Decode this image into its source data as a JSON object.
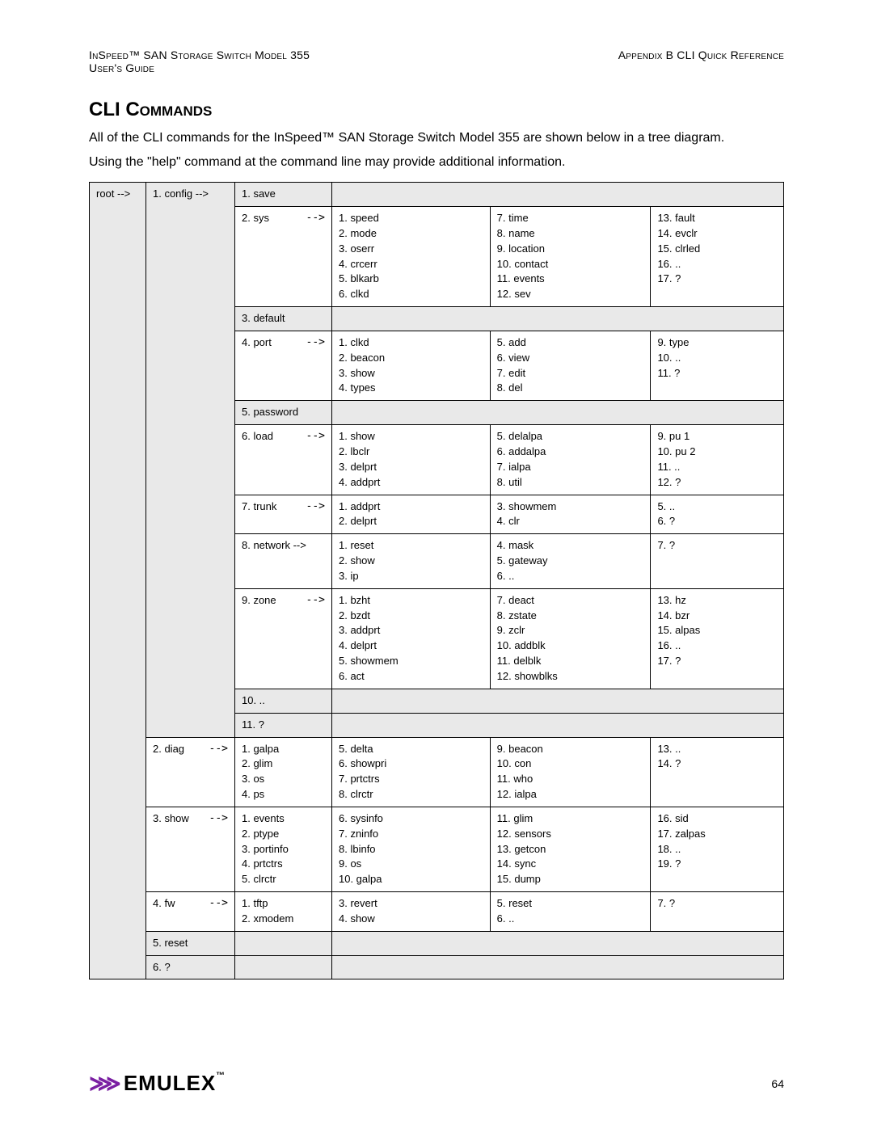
{
  "header": {
    "left_line1": "InSpeed™ SAN Storage Switch Model 355",
    "left_line2": "User's Guide",
    "right_line1": "Appendix B CLI Quick Reference"
  },
  "title": "CLI Commands",
  "intro1": "All of the CLI commands for the InSpeed™ SAN Storage Switch Model 355 are shown below in a tree diagram.",
  "intro2": "Using the \"help\" command at the command line may provide additional information.",
  "root": "root -->",
  "l2": {
    "config": "1. config -->",
    "diag": "2. diag",
    "show": "3. show",
    "fw": "4. fw",
    "reset": "5. reset",
    "q": "6. ?"
  },
  "arrow": "-->",
  "config": {
    "save": "1. save",
    "sys": "2. sys",
    "default": "3. default",
    "port": "4. port",
    "password": "5. password",
    "load": "6. load",
    "trunk": "7. trunk",
    "network": "8. network -->",
    "zone": "9. zone",
    "dots": "10. ..",
    "q": "11. ?"
  },
  "sys": {
    "c1": [
      "1. speed",
      "2. mode",
      "3. oserr",
      "4. crcerr",
      "5. blkarb",
      "6. clkd"
    ],
    "c2": [
      "7. time",
      "8. name",
      "9. location",
      "10. contact",
      "11. events",
      "12. sev"
    ],
    "c3": [
      "13. fault",
      "14. evclr",
      "15. clrled",
      "16. ..",
      "17. ?"
    ]
  },
  "port": {
    "c1": [
      "1. clkd",
      "2. beacon",
      "3. show",
      "4. types"
    ],
    "c2": [
      "5. add",
      "6. view",
      "7. edit",
      "8. del"
    ],
    "c3": [
      "9. type",
      "10. ..",
      "11. ?"
    ]
  },
  "load": {
    "c1": [
      "1. show",
      "2. lbclr",
      "3. delprt",
      "4. addprt"
    ],
    "c2": [
      "5. delalpa",
      "6. addalpa",
      "7. ialpa",
      "8. util"
    ],
    "c3": [
      "9. pu 1",
      "10. pu 2",
      "11. ..",
      "12. ?"
    ]
  },
  "trunk": {
    "c1": [
      "1. addprt",
      "2. delprt"
    ],
    "c2": [
      "3. showmem",
      "4. clr"
    ],
    "c3": [
      "5. ..",
      "6. ?"
    ]
  },
  "network": {
    "c1": [
      "1. reset",
      "2. show",
      "3. ip"
    ],
    "c2": [
      "4. mask",
      "5. gateway",
      "6. .."
    ],
    "c3": [
      "7. ?"
    ]
  },
  "zone": {
    "c1": [
      "1. bzht",
      "2. bzdt",
      "3. addprt",
      "4. delprt",
      "5. showmem",
      "6. act"
    ],
    "c2": [
      "7. deact",
      "8. zstate",
      "9. zclr",
      "10. addblk",
      "11. delblk",
      "12. showblks"
    ],
    "c3": [
      "13. hz",
      "14. bzr",
      "15. alpas",
      "16. ..",
      "17. ?"
    ]
  },
  "diag": {
    "c0": [
      "1. galpa",
      "2. glim",
      "3. os",
      "4. ps"
    ],
    "c1": [
      "5. delta",
      "6. showpri",
      "7. prtctrs",
      "8. clrctr"
    ],
    "c2": [
      "9. beacon",
      "10. con",
      "11. who",
      "12. ialpa"
    ],
    "c3": [
      "13. ..",
      "14. ?"
    ]
  },
  "show": {
    "c0": [
      "1. events",
      "2. ptype",
      "3. portinfo",
      "4. prtctrs",
      "5. clrctr"
    ],
    "c1": [
      "6. sysinfo",
      "7. zninfo",
      "8. lbinfo",
      "9. os",
      "10. galpa"
    ],
    "c2": [
      "11. glim",
      "12. sensors",
      "13. getcon",
      "14. sync",
      "15. dump"
    ],
    "c3": [
      "16. sid",
      "17. zalpas",
      "18. ..",
      "19. ?"
    ]
  },
  "fw": {
    "c0": [
      "1. tftp",
      "2. xmodem"
    ],
    "c1": [
      "3. revert",
      "4. show"
    ],
    "c2": [
      "5. reset",
      "6. .."
    ],
    "c3": [
      "7. ?"
    ]
  },
  "footer": {
    "logo_mark": "⋙",
    "logo_text": "EMULEX",
    "tm": "™",
    "page": "64"
  }
}
